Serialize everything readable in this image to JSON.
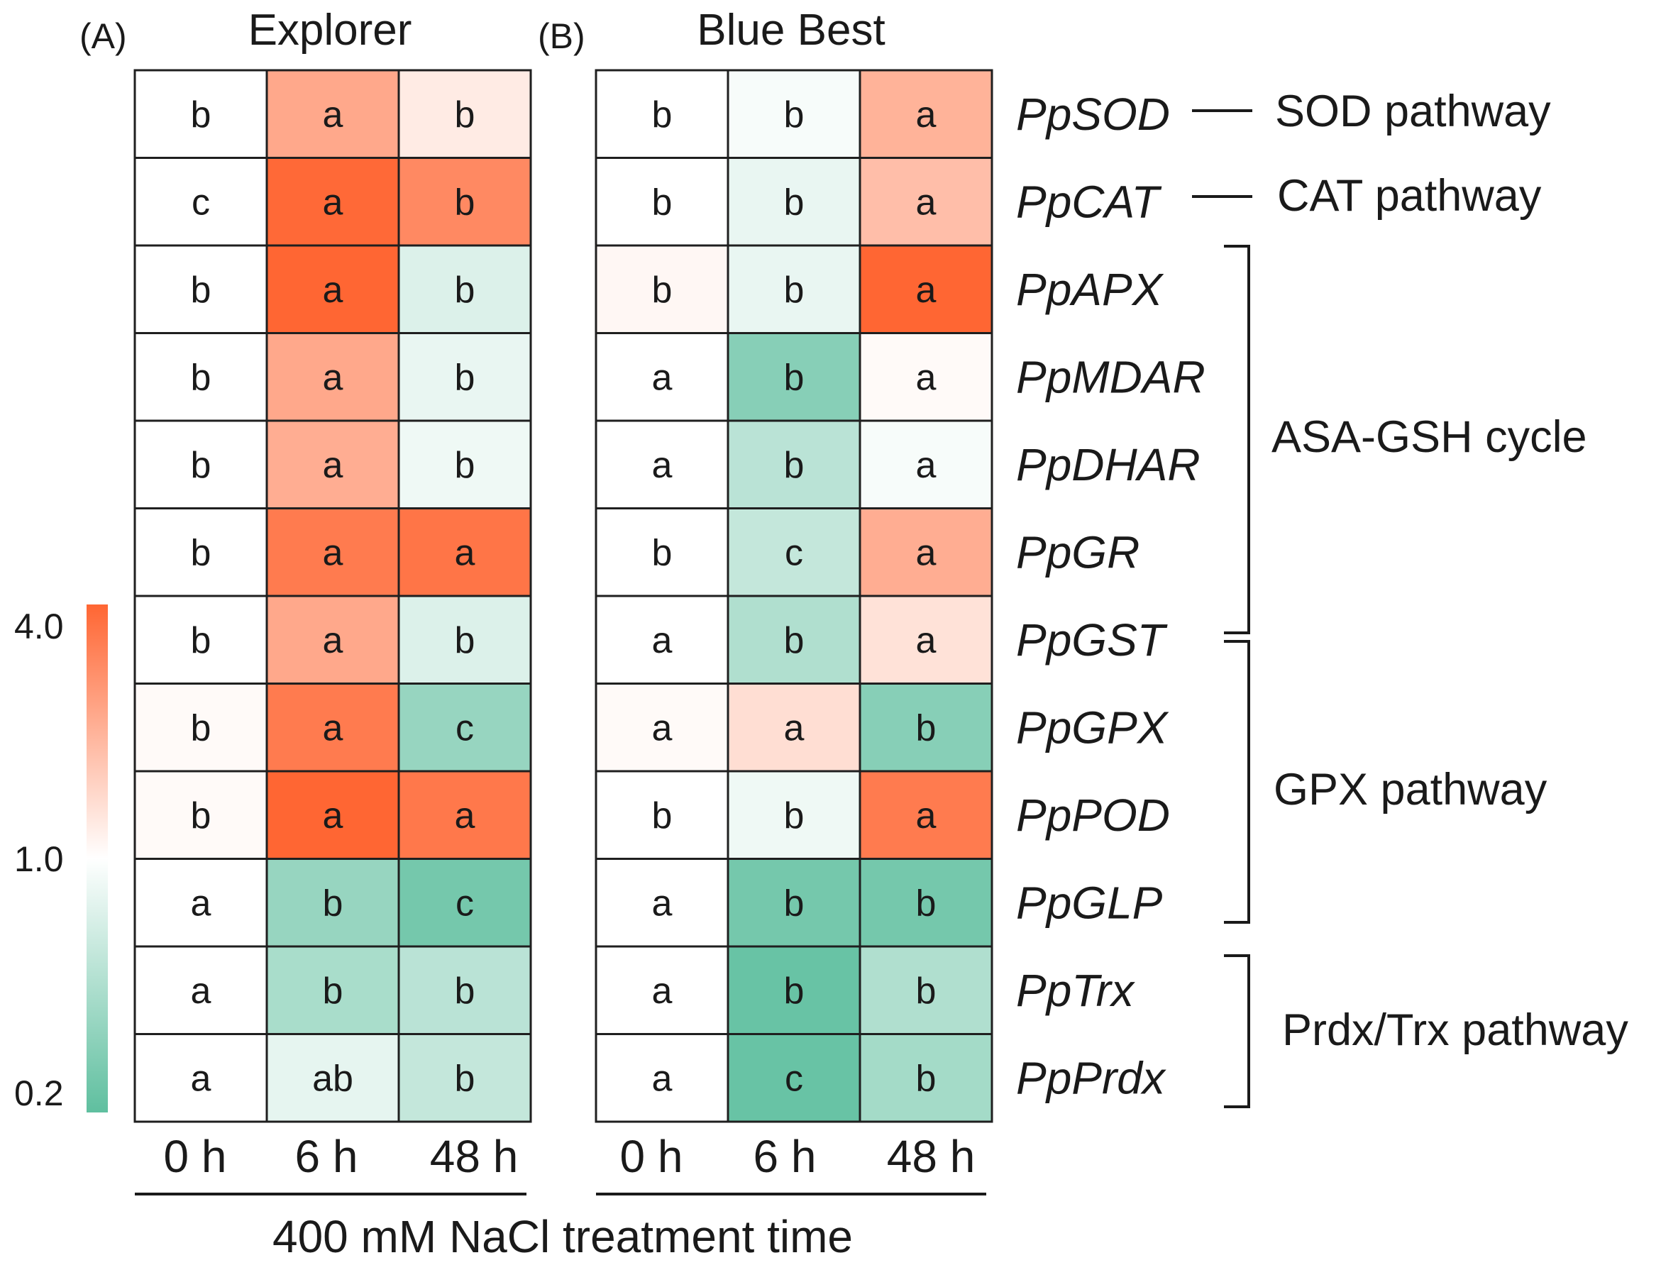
{
  "chart_data": {
    "type": "heatmap",
    "panels": [
      {
        "label": "(A)",
        "title": "Explorer",
        "columns": [
          "0 h",
          "6 h",
          "48 h"
        ],
        "values": [
          [
            1.0,
            2.2,
            1.2
          ],
          [
            1.0,
            3.9,
            2.9
          ],
          [
            1.0,
            4.0,
            0.7
          ],
          [
            1.0,
            2.2,
            0.8
          ],
          [
            1.0,
            2.1,
            0.85
          ],
          [
            1.0,
            3.3,
            3.5
          ],
          [
            1.0,
            2.2,
            0.7
          ],
          [
            1.05,
            3.3,
            0.35
          ],
          [
            1.05,
            4.0,
            3.4
          ],
          [
            1.0,
            0.35,
            0.25
          ],
          [
            1.0,
            0.42,
            0.5
          ],
          [
            1.0,
            0.78,
            0.55
          ]
        ],
        "letters": [
          [
            "b",
            "a",
            "b"
          ],
          [
            "c",
            "a",
            "b"
          ],
          [
            "b",
            "a",
            "b"
          ],
          [
            "b",
            "a",
            "b"
          ],
          [
            "b",
            "a",
            "b"
          ],
          [
            "b",
            "a",
            "a"
          ],
          [
            "b",
            "a",
            "b"
          ],
          [
            "b",
            "a",
            "c"
          ],
          [
            "b",
            "a",
            "a"
          ],
          [
            "a",
            "b",
            "c"
          ],
          [
            "a",
            "b",
            "b"
          ],
          [
            "a",
            "ab",
            "b"
          ]
        ]
      },
      {
        "label": "(B)",
        "title": "Blue Best",
        "columns": [
          "0 h",
          "6 h",
          "48 h"
        ],
        "values": [
          [
            1.0,
            0.92,
            2.0
          ],
          [
            1.0,
            0.8,
            1.8
          ],
          [
            1.08,
            0.8,
            4.0
          ],
          [
            1.0,
            0.3,
            1.05
          ],
          [
            1.0,
            0.5,
            0.92
          ],
          [
            1.0,
            0.55,
            2.1
          ],
          [
            1.0,
            0.45,
            1.3
          ],
          [
            1.05,
            1.35,
            0.3
          ],
          [
            1.0,
            0.85,
            3.3
          ],
          [
            1.0,
            0.25,
            0.25
          ],
          [
            1.0,
            0.22,
            0.45
          ],
          [
            1.0,
            0.22,
            0.4
          ]
        ],
        "letters": [
          [
            "b",
            "b",
            "a"
          ],
          [
            "b",
            "b",
            "a"
          ],
          [
            "b",
            "b",
            "a"
          ],
          [
            "a",
            "b",
            "a"
          ],
          [
            "a",
            "b",
            "a"
          ],
          [
            "b",
            "c",
            "a"
          ],
          [
            "a",
            "b",
            "a"
          ],
          [
            "a",
            "a",
            "b"
          ],
          [
            "b",
            "b",
            "a"
          ],
          [
            "a",
            "b",
            "b"
          ],
          [
            "a",
            "b",
            "b"
          ],
          [
            "a",
            "c",
            "b"
          ]
        ]
      }
    ],
    "genes": [
      "PpSOD",
      "PpCAT",
      "PpAPX",
      "PpMDAR",
      "PpDHAR",
      "PpGR",
      "PpGST",
      "PpGPX",
      "PpPOD",
      "PpGLP",
      "PpTrx",
      "PpPrdx"
    ],
    "pathways": [
      {
        "label": "SOD pathway",
        "genes": [
          "PpSOD"
        ]
      },
      {
        "label": "CAT pathway",
        "genes": [
          "PpCAT"
        ]
      },
      {
        "label": "ASA-GSH cycle",
        "genes": [
          "PpAPX",
          "PpMDAR",
          "PpDHAR",
          "PpGR",
          "PpGST"
        ]
      },
      {
        "label": "GPX pathway",
        "genes": [
          "PpGST",
          "PpGPX",
          "PpPOD",
          "PpGLP"
        ]
      },
      {
        "label": "Prdx/Trx pathway",
        "genes": [
          "PpTrx",
          "PpPrdx"
        ]
      }
    ],
    "colorscale": {
      "ticks": [
        "4.0",
        "1.0",
        "0.2"
      ],
      "range": [
        0.2,
        4.0
      ],
      "mid": 1.0,
      "colors": {
        "low": "#5fbf9f",
        "mid": "#ffffff",
        "high": "#ff6633"
      }
    },
    "xlabel": "400 mM NaCl treatment time"
  }
}
